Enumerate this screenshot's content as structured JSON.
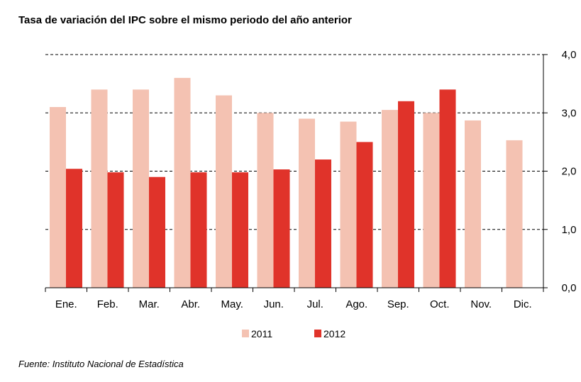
{
  "title": "Tasa de variación del IPC sobre el mismo periodo del año anterior",
  "source": "Fuente: Instituto Nacional de Estadística",
  "colors": {
    "s2011": "#f4c2b2",
    "s2012": "#e0332a",
    "grid": "#000000",
    "axis": "#000000"
  },
  "chart_data": {
    "type": "bar",
    "title": "Tasa de variación del IPC sobre el mismo periodo del año anterior",
    "categories": [
      "Ene.",
      "Feb.",
      "Mar.",
      "Abr.",
      "May.",
      "Jun.",
      "Jul.",
      "Ago.",
      "Sep.",
      "Oct.",
      "Nov.",
      "Dic."
    ],
    "series": [
      {
        "name": "2011",
        "values": [
          3.1,
          3.4,
          3.4,
          3.6,
          3.3,
          3.0,
          2.9,
          2.85,
          3.05,
          3.0,
          2.87,
          2.53
        ]
      },
      {
        "name": "2012",
        "values": [
          2.04,
          1.98,
          1.9,
          1.98,
          1.98,
          2.03,
          2.2,
          2.5,
          3.2,
          3.4,
          null,
          null
        ]
      }
    ],
    "yticks": [
      "0,0",
      "1,0",
      "2,0",
      "3,0",
      "4,0"
    ],
    "ylim": [
      0,
      4
    ],
    "grid": true,
    "y_axis_side": "right",
    "legend_position": "bottom-center"
  }
}
